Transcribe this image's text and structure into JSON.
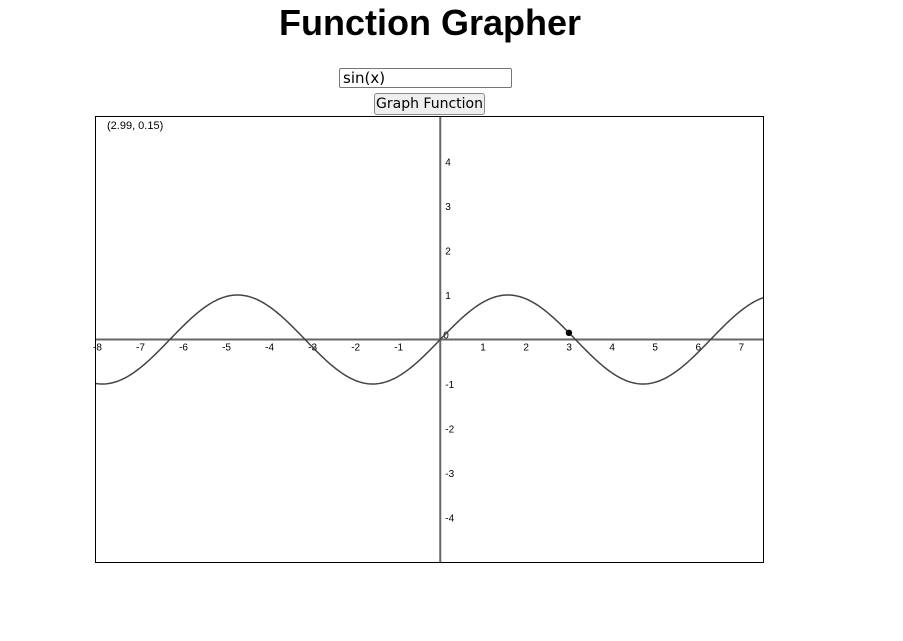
{
  "page": {
    "title": "Function Grapher"
  },
  "controls": {
    "function_value": "sin(x)",
    "graph_button_label": "Graph Function"
  },
  "readout": {
    "coordinates": "(2.99, 0.15)"
  },
  "colors": {
    "axis": "#666666",
    "curve": "#444444",
    "point": "#000000"
  },
  "chart_data": {
    "type": "line",
    "function": "sin(x)",
    "xlim": [
      -8,
      7.5
    ],
    "ylim": [
      -5,
      5
    ],
    "x_ticks": [
      -8,
      -7,
      -6,
      -5,
      -4,
      -3,
      -2,
      -1,
      1,
      2,
      3,
      4,
      5,
      6,
      7
    ],
    "y_ticks": [
      -4,
      -3,
      -2,
      -1,
      1,
      2,
      3,
      4
    ],
    "origin_label": "0",
    "marked_point": {
      "x": 2.99,
      "y": 0.15
    },
    "grid": false
  }
}
